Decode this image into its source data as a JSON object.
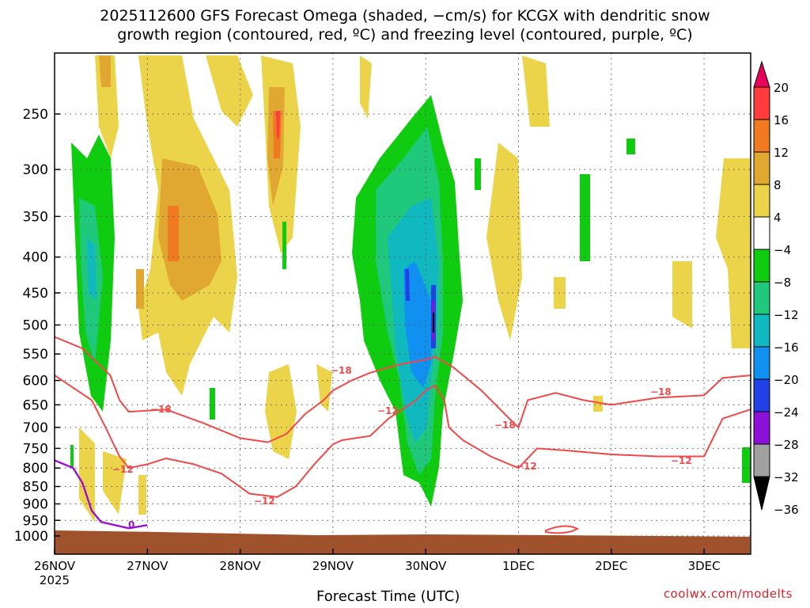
{
  "title_line1": "2025112600 GFS Forecast Omega (shaded, −cm/s) for KCGX with dendritic snow",
  "title_line2": "growth region (contoured, red, ºC) and freezing level (contoured, purple, ºC)",
  "credit": "coolwx.com/modelts",
  "chart_data": {
    "type": "heatmap",
    "xlabel": "Forecast Time (UTC)",
    "ylabel": "",
    "x_ticks": [
      "26NOV",
      "27NOV",
      "28NOV",
      "29NOV",
      "30NOV",
      "1DEC",
      "2DEC",
      "3DEC"
    ],
    "x_year_label": "2025",
    "y_ticks": [
      250,
      300,
      350,
      400,
      450,
      500,
      550,
      600,
      650,
      700,
      750,
      800,
      850,
      900,
      950,
      1000
    ],
    "y_scale": "log-pressure",
    "y_range": [
      200,
      1050
    ],
    "x_range_days": [
      0,
      7.5
    ],
    "grid": true,
    "colorbar": {
      "labels": [
        "20",
        "16",
        "12",
        "8",
        "4",
        "−4",
        "−8",
        "−12",
        "−16",
        "−20",
        "−24",
        "−28",
        "−32",
        "−36"
      ],
      "colors": [
        "#e8005a",
        "#ff3c3c",
        "#f07a20",
        "#e0a830",
        "#ecd44a",
        "#ffffff",
        "#10cc10",
        "#20c87c",
        "#10b8c0",
        "#1090f0",
        "#2040e8",
        "#8c10d8",
        "#a0a0a0",
        "#000000"
      ]
    },
    "contour_labels": {
      "minus18": "−18",
      "minus12": "−12",
      "zero": "0"
    },
    "contour_minus18": [
      [
        0,
        520
      ],
      [
        0.3,
        540
      ],
      [
        0.6,
        590
      ],
      [
        0.7,
        640
      ],
      [
        0.8,
        665
      ],
      [
        1.2,
        660
      ],
      [
        1.6,
        690
      ],
      [
        2.0,
        725
      ],
      [
        2.3,
        735
      ],
      [
        2.5,
        715
      ],
      [
        2.7,
        670
      ],
      [
        2.9,
        640
      ],
      [
        3.0,
        620
      ],
      [
        3.2,
        600
      ],
      [
        3.4,
        585
      ],
      [
        3.7,
        570
      ],
      [
        4.0,
        560
      ],
      [
        4.1,
        555
      ],
      [
        4.15,
        560
      ],
      [
        4.3,
        575
      ],
      [
        4.6,
        620
      ],
      [
        4.9,
        680
      ],
      [
        5.0,
        700
      ],
      [
        5.1,
        640
      ],
      [
        5.4,
        625
      ],
      [
        5.7,
        640
      ],
      [
        6.0,
        650
      ],
      [
        6.5,
        635
      ],
      [
        7.0,
        630
      ],
      [
        7.2,
        595
      ],
      [
        7.5,
        590
      ]
    ],
    "contour_minus12": [
      [
        0,
        590
      ],
      [
        0.4,
        640
      ],
      [
        0.55,
        700
      ],
      [
        0.7,
        770
      ],
      [
        0.8,
        800
      ],
      [
        1.0,
        790
      ],
      [
        1.2,
        775
      ],
      [
        1.5,
        790
      ],
      [
        1.8,
        815
      ],
      [
        2.1,
        870
      ],
      [
        2.4,
        880
      ],
      [
        2.6,
        850
      ],
      [
        2.8,
        790
      ],
      [
        3.0,
        740
      ],
      [
        3.1,
        730
      ],
      [
        3.4,
        720
      ],
      [
        3.6,
        680
      ],
      [
        3.9,
        640
      ],
      [
        4.0,
        620
      ],
      [
        4.1,
        610
      ],
      [
        4.2,
        640
      ],
      [
        4.25,
        700
      ],
      [
        4.4,
        730
      ],
      [
        4.7,
        770
      ],
      [
        4.9,
        790
      ],
      [
        5.0,
        800
      ],
      [
        5.2,
        750
      ],
      [
        5.5,
        755
      ],
      [
        6.0,
        765
      ],
      [
        6.5,
        770
      ],
      [
        7.0,
        770
      ],
      [
        7.2,
        680
      ],
      [
        7.5,
        660
      ]
    ],
    "contour_zero": [
      [
        0,
        780
      ],
      [
        0.2,
        800
      ],
      [
        0.3,
        840
      ],
      [
        0.4,
        920
      ],
      [
        0.5,
        955
      ],
      [
        0.8,
        975
      ],
      [
        1.0,
        965
      ]
    ]
  }
}
